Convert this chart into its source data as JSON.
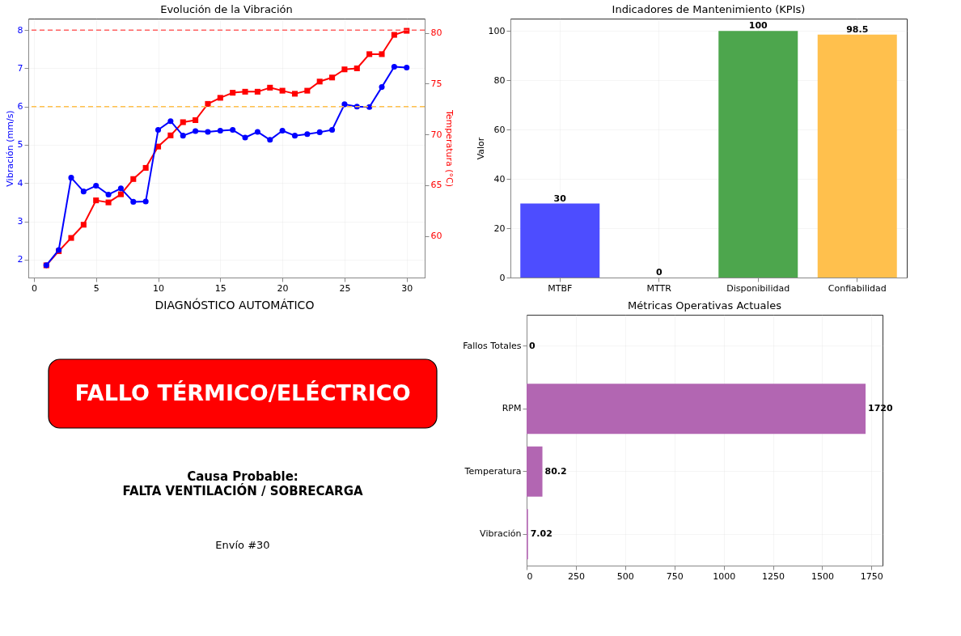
{
  "chart_data": [
    {
      "type": "line",
      "title": "Evolución de la Vibración",
      "ylabel": "Vibración (mm/s)",
      "y2label": "Temperatura (°C)",
      "x": [
        1,
        2,
        3,
        4,
        5,
        6,
        7,
        8,
        9,
        10,
        11,
        12,
        13,
        14,
        15,
        16,
        17,
        18,
        19,
        20,
        21,
        22,
        23,
        24,
        25,
        26,
        27,
        28,
        29,
        30
      ],
      "xlim": [
        -0.45,
        31.45
      ],
      "xticks": [
        0,
        5,
        10,
        15,
        20,
        25,
        30
      ],
      "ylim": [
        1.53,
        8.3
      ],
      "yticks": [
        2,
        3,
        4,
        5,
        6,
        7,
        8
      ],
      "y2lim": [
        55.9,
        81.4
      ],
      "y2ticks": [
        60,
        65,
        70,
        75,
        80
      ],
      "grid": true,
      "line_style": "solid",
      "series": [
        {
          "color": "#0000ff",
          "marker": "circle",
          "values": [
            1.85,
            2.25,
            4.14,
            3.78,
            3.93,
            3.7,
            3.86,
            3.51,
            3.52,
            5.39,
            5.62,
            5.24,
            5.36,
            5.34,
            5.37,
            5.39,
            5.19,
            5.34,
            5.13,
            5.37,
            5.24,
            5.28,
            5.33,
            5.39,
            6.06,
            6.0,
            5.99,
            6.51,
            7.04,
            7.02
          ]
        },
        {
          "color": "#ff0000",
          "marker": "square",
          "axis": "y2",
          "values": [
            57.1,
            58.5,
            59.8,
            61.1,
            63.5,
            63.3,
            64.1,
            65.6,
            66.7,
            68.8,
            69.9,
            71.2,
            71.4,
            73.0,
            73.6,
            74.1,
            74.2,
            74.2,
            74.6,
            74.3,
            74.0,
            74.3,
            75.2,
            75.6,
            76.4,
            76.5,
            77.9,
            77.9,
            79.8,
            80.2
          ]
        }
      ],
      "ref_lines": [
        {
          "axis": "y",
          "value": 8,
          "color": "#ff6060",
          "line_style": "dashed"
        },
        {
          "axis": "y",
          "value": 6,
          "color": "#ffc04d",
          "line_style": "dashed"
        }
      ]
    },
    {
      "type": "bar",
      "title": "Indicadores de Mantenimiento (KPIs)",
      "ylabel": "Valor",
      "categories": [
        "MTBF",
        "MTTR",
        "Disponibilidad",
        "Confiabilidad"
      ],
      "values": [
        30,
        0,
        100,
        98.5
      ],
      "colors": [
        "#4d4dff",
        "#ff4d4d",
        "#4da64d",
        "#ffc04d"
      ],
      "ylim": [
        0,
        105
      ],
      "yticks": [
        0,
        20,
        40,
        60,
        80,
        100
      ],
      "grid": true,
      "data_labels": true
    },
    {
      "type": "other",
      "title": "DIAGNÓSTICO AUTOMÁTICO",
      "annotations": [
        "FALLO TÉRMICO/ELÉCTRICO",
        "Causa Probable:\nFALTA VENTILACIÓN / SOBRECARGA",
        "Envío #30"
      ]
    },
    {
      "type": "bar",
      "orientation": "horizontal",
      "title": "Métricas Operativas Actuales",
      "categories": [
        "Fallos Totales",
        "RPM",
        "Temperatura",
        "Vibración"
      ],
      "values": [
        0,
        1720,
        80.2,
        7.02
      ],
      "colors": [
        "#b266b2",
        "#b266b2",
        "#b266b2",
        "#b266b2"
      ],
      "xlim": [
        0,
        1806
      ],
      "xticks": [
        0,
        250,
        500,
        750,
        1000,
        1250,
        1500,
        1750
      ],
      "grid": true,
      "data_labels": true
    }
  ]
}
